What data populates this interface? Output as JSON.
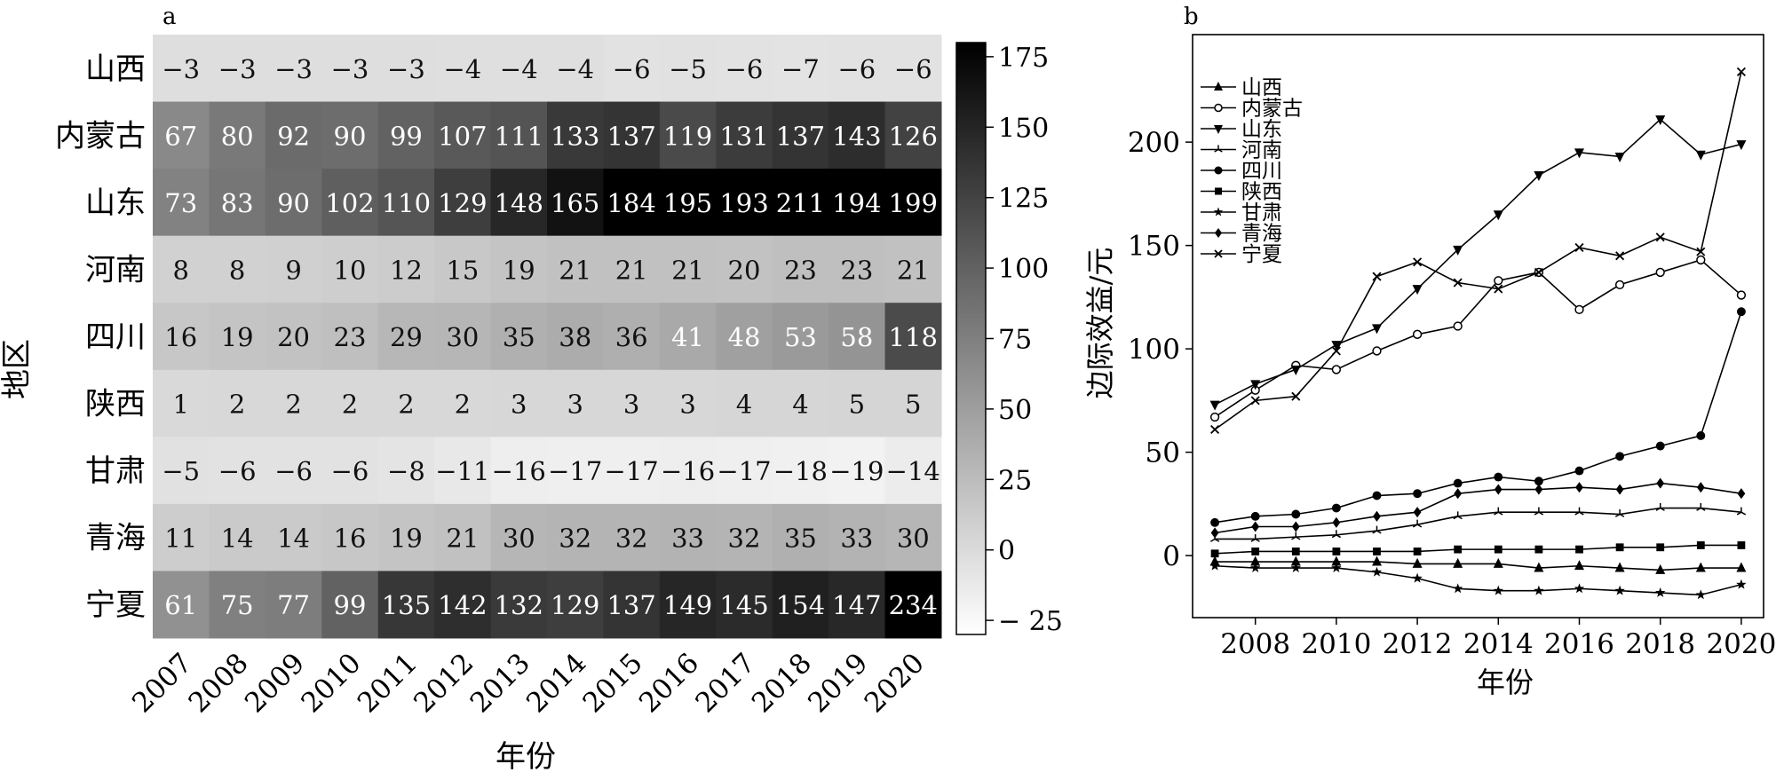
{
  "panel_labels": {
    "a": "a",
    "b": "b"
  },
  "chart_data": [
    {
      "type": "heatmap",
      "panel": "a",
      "xlabel": "年份",
      "ylabel": "地区",
      "x": [
        "2007",
        "2008",
        "2009",
        "2010",
        "2011",
        "2012",
        "2013",
        "2014",
        "2015",
        "2016",
        "2017",
        "2018",
        "2019",
        "2020"
      ],
      "y": [
        "山西",
        "内蒙古",
        "山东",
        "河南",
        "四川",
        "陕西",
        "甘肃",
        "青海",
        "宁夏"
      ],
      "values": [
        [
          -3,
          -3,
          -3,
          -3,
          -3,
          -4,
          -4,
          -4,
          -6,
          -5,
          -6,
          -7,
          -6,
          -6
        ],
        [
          67,
          80,
          92,
          90,
          99,
          107,
          111,
          133,
          137,
          119,
          131,
          137,
          143,
          126
        ],
        [
          73,
          83,
          90,
          102,
          110,
          129,
          148,
          165,
          184,
          195,
          193,
          211,
          194,
          199
        ],
        [
          8,
          8,
          9,
          10,
          12,
          15,
          19,
          21,
          21,
          21,
          20,
          23,
          23,
          21
        ],
        [
          16,
          19,
          20,
          23,
          29,
          30,
          35,
          38,
          36,
          41,
          48,
          53,
          58,
          118
        ],
        [
          1,
          2,
          2,
          2,
          2,
          2,
          3,
          3,
          3,
          3,
          4,
          4,
          5,
          5
        ],
        [
          -5,
          -6,
          -6,
          -6,
          -8,
          -11,
          -16,
          -17,
          -17,
          -16,
          -17,
          -18,
          -19,
          -14
        ],
        [
          11,
          14,
          14,
          16,
          19,
          21,
          30,
          32,
          32,
          33,
          32,
          35,
          33,
          30
        ],
        [
          61,
          75,
          77,
          99,
          135,
          142,
          132,
          129,
          137,
          149,
          145,
          154,
          147,
          234
        ]
      ],
      "colorbar": {
        "range": [
          -30,
          180
        ],
        "ticks": [
          -25,
          0,
          25,
          50,
          75,
          100,
          125,
          150,
          175
        ],
        "tick_labels": [
          "− 25",
          "0",
          "25",
          "50",
          "75",
          "100",
          "125",
          "150",
          "175"
        ],
        "colors": [
          "#ffffff",
          "#000000"
        ]
      },
      "light_text_threshold": 40,
      "text_dark": "#111111",
      "text_light": "#ffffff"
    },
    {
      "type": "line",
      "panel": "b",
      "xlabel": "年份",
      "ylabel": "边际效益/元",
      "x": [
        2007,
        2008,
        2009,
        2010,
        2011,
        2012,
        2013,
        2014,
        2015,
        2016,
        2017,
        2018,
        2019,
        2020
      ],
      "xticks": [
        2008,
        2010,
        2012,
        2014,
        2016,
        2018,
        2020
      ],
      "xlim": [
        2006.45,
        2020.55
      ],
      "yticks": [
        0,
        50,
        100,
        150,
        200
      ],
      "ylim": [
        -30,
        252
      ],
      "legend_position": "upper-left",
      "series": [
        {
          "name": "山西",
          "marker": "triangle-up",
          "values": [
            -3,
            -3,
            -3,
            -3,
            -3,
            -4,
            -4,
            -4,
            -6,
            -5,
            -6,
            -7,
            -6,
            -6
          ]
        },
        {
          "name": "内蒙古",
          "marker": "circle-open",
          "values": [
            67,
            80,
            92,
            90,
            99,
            107,
            111,
            133,
            137,
            119,
            131,
            137,
            143,
            126
          ]
        },
        {
          "name": "山东",
          "marker": "triangle-down",
          "values": [
            73,
            83,
            90,
            102,
            110,
            129,
            148,
            165,
            184,
            195,
            193,
            211,
            194,
            199
          ]
        },
        {
          "name": "河南",
          "marker": "tri",
          "values": [
            8,
            8,
            9,
            10,
            12,
            15,
            19,
            21,
            21,
            21,
            20,
            23,
            23,
            21
          ]
        },
        {
          "name": "四川",
          "marker": "circle",
          "values": [
            16,
            19,
            20,
            23,
            29,
            30,
            35,
            38,
            36,
            41,
            48,
            53,
            58,
            118
          ]
        },
        {
          "name": "陕西",
          "marker": "square",
          "values": [
            1,
            2,
            2,
            2,
            2,
            2,
            3,
            3,
            3,
            3,
            4,
            4,
            5,
            5
          ]
        },
        {
          "name": "甘肃",
          "marker": "star",
          "values": [
            -5,
            -6,
            -6,
            -6,
            -8,
            -11,
            -16,
            -17,
            -17,
            -16,
            -17,
            -18,
            -19,
            -14
          ]
        },
        {
          "name": "青海",
          "marker": "diamond",
          "values": [
            11,
            14,
            14,
            16,
            19,
            21,
            30,
            32,
            32,
            33,
            32,
            35,
            33,
            30
          ]
        },
        {
          "name": "宁夏",
          "marker": "x",
          "values": [
            61,
            75,
            77,
            99,
            135,
            142,
            132,
            129,
            137,
            149,
            145,
            154,
            147,
            234
          ]
        }
      ]
    }
  ]
}
